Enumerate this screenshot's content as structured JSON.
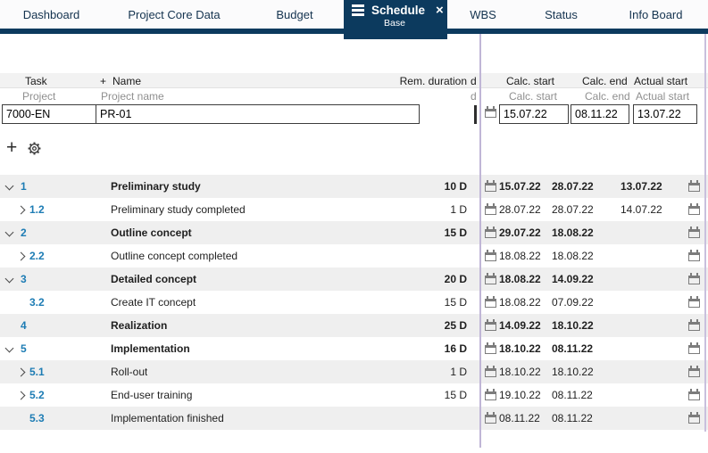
{
  "colors": {
    "navy": "#0c3a5e",
    "task_id_blue": "#1d7cb4",
    "splitter": "#c0b6d6",
    "row_shade": "#efefef"
  },
  "tabs": {
    "items": [
      {
        "label": "Dashboard",
        "active": false
      },
      {
        "label": "Project Core Data",
        "active": false
      },
      {
        "label": "Budget",
        "active": false
      },
      {
        "label": "Schedule",
        "active": true,
        "subtitle": "Base",
        "close_glyph": "×"
      },
      {
        "label": "WBS",
        "active": false
      },
      {
        "label": "Status",
        "active": false
      },
      {
        "label": "Info Board",
        "active": false
      }
    ]
  },
  "table": {
    "headers": {
      "task": "Task",
      "add": "+",
      "name": "Name",
      "rem_duration": "Rem. duration",
      "clipped_fragment": "d",
      "calc_start": "Calc. start",
      "calc_end": "Calc. end",
      "actual_start": "Actual start"
    },
    "subheaders": {
      "task": "Project",
      "name": "Project name",
      "clipped_fragment": "d",
      "calc_start": "Calc. start",
      "calc_end": "Calc. end",
      "actual_start": "Actual start"
    },
    "filter_row": {
      "task": "7000-EN",
      "name": "PR-01",
      "calc_start": "15.07.22",
      "calc_end": "08.11.22",
      "actual_start": "13.07.22"
    }
  },
  "rows": [
    {
      "id": "1",
      "level": 1,
      "chevron": "down",
      "name": "Preliminary study",
      "rem": "10 D",
      "calc_start": "15.07.22",
      "calc_end": "28.07.22",
      "actual_start": "13.07.22",
      "bold": true,
      "shaded": true
    },
    {
      "id": "1.2",
      "level": 2,
      "chevron": "right",
      "name": "Preliminary study completed",
      "rem": "1 D",
      "calc_start": "28.07.22",
      "calc_end": "28.07.22",
      "actual_start": "14.07.22",
      "bold": false,
      "shaded": false
    },
    {
      "id": "2",
      "level": 1,
      "chevron": "down",
      "name": "Outline concept",
      "rem": "15 D",
      "calc_start": "29.07.22",
      "calc_end": "18.08.22",
      "actual_start": "",
      "bold": true,
      "shaded": true
    },
    {
      "id": "2.2",
      "level": 2,
      "chevron": "right",
      "name": "Outline concept completed",
      "rem": "",
      "calc_start": "18.08.22",
      "calc_end": "18.08.22",
      "actual_start": "",
      "bold": false,
      "shaded": false
    },
    {
      "id": "3",
      "level": 1,
      "chevron": "down",
      "name": "Detailed concept",
      "rem": "20 D",
      "calc_start": "18.08.22",
      "calc_end": "14.09.22",
      "actual_start": "",
      "bold": true,
      "shaded": true
    },
    {
      "id": "3.2",
      "level": 2,
      "chevron": "none",
      "name": "Create IT concept",
      "rem": "15 D",
      "calc_start": "18.08.22",
      "calc_end": "07.09.22",
      "actual_start": "",
      "bold": false,
      "shaded": false
    },
    {
      "id": "4",
      "level": 1,
      "chevron": "none",
      "name": "Realization",
      "rem": "25 D",
      "calc_start": "14.09.22",
      "calc_end": "18.10.22",
      "actual_start": "",
      "bold": true,
      "shaded": true
    },
    {
      "id": "5",
      "level": 1,
      "chevron": "down",
      "name": "Implementation",
      "rem": "16 D",
      "calc_start": "18.10.22",
      "calc_end": "08.11.22",
      "actual_start": "",
      "bold": true,
      "shaded": false
    },
    {
      "id": "5.1",
      "level": 2,
      "chevron": "right",
      "name": "Roll-out",
      "rem": "1 D",
      "calc_start": "18.10.22",
      "calc_end": "18.10.22",
      "actual_start": "",
      "bold": false,
      "shaded": true
    },
    {
      "id": "5.2",
      "level": 2,
      "chevron": "right",
      "name": "End-user training",
      "rem": "15 D",
      "calc_start": "19.10.22",
      "calc_end": "08.11.22",
      "actual_start": "",
      "bold": false,
      "shaded": false
    },
    {
      "id": "5.3",
      "level": 2,
      "chevron": "none",
      "name": "Implementation finished",
      "rem": "",
      "calc_start": "08.11.22",
      "calc_end": "08.11.22",
      "actual_start": "",
      "bold": false,
      "shaded": true
    }
  ]
}
